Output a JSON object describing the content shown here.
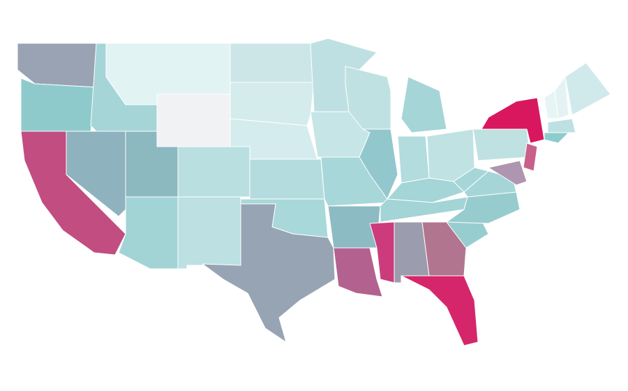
{
  "map": {
    "regions": [
      {
        "color": "#9aa3b4"
      },
      {
        "color": "#8ecacb"
      },
      {
        "color": "#c24d80"
      },
      {
        "color": "#8fb2bf"
      },
      {
        "color": "#a6d5d8"
      },
      {
        "color": "#e2f3f4"
      },
      {
        "color": "#f1f2f4"
      },
      {
        "color": "#8cb8c0"
      },
      {
        "color": "#a2d4d6"
      },
      {
        "color": "#b9dfe1"
      },
      {
        "color": "#bde0e2"
      },
      {
        "color": "#cce6e8"
      },
      {
        "color": "#d4ecec"
      },
      {
        "color": "#d4ecee"
      },
      {
        "color": "#b4dcde"
      },
      {
        "color": "#a8d8d9"
      },
      {
        "color": "#97a4b4"
      },
      {
        "color": "#bfe0e2"
      },
      {
        "color": "#c6e5e7"
      },
      {
        "color": "#a8d7d9"
      },
      {
        "color": "#8dbbc4"
      },
      {
        "color": "#b3628f"
      },
      {
        "color": "#c0e1e2"
      },
      {
        "color": "#92c8cd"
      },
      {
        "color": "#a5d5d7"
      },
      {
        "color": "#b2dcdd"
      },
      {
        "color": "#c0e2e3"
      },
      {
        "color": "#a4d5d7"
      },
      {
        "color": "#a3d4d6"
      },
      {
        "color": "#cc3c7c"
      },
      {
        "color": "#9b9dae"
      },
      {
        "color": "#b2758f"
      },
      {
        "color": "#d5266b"
      },
      {
        "color": "#98cdd0"
      },
      {
        "color": "#97cccf"
      },
      {
        "color": "#a6d5d7"
      },
      {
        "color": "#a7d6d8"
      },
      {
        "color": "#bfe1e2"
      },
      {
        "color": "#d8175f"
      },
      {
        "color": "#c86089"
      },
      {
        "color": "#ae95b0"
      },
      {
        "color": "#e6f4f4"
      },
      {
        "color": "#e3f3f3"
      },
      {
        "color": "#d0eaec"
      },
      {
        "color": "#bde1e3"
      },
      {
        "color": "#8ecbcd"
      }
    ]
  }
}
